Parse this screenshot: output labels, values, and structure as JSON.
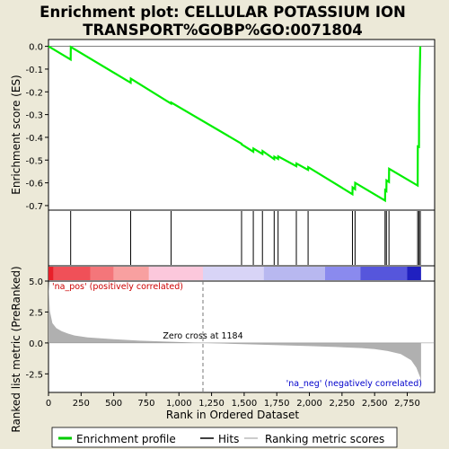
{
  "chart_data": {
    "type": "line",
    "title_line1": "Enrichment plot: CELLULAR POTASSIUM ION",
    "title_line2": "TRANSPORT%GOBP%GO:0071804",
    "xlabel": "Rank in Ordered Dataset",
    "ylabel_top": "Enrichment score (ES)",
    "ylabel_bottom": "Ranked list metric (PreRanked)",
    "xlim": [
      0,
      2960
    ],
    "ylim_es": [
      -0.72,
      0.03
    ],
    "ylim_metric": [
      -4.0,
      5.0
    ],
    "x_ticks": [
      0,
      250,
      500,
      750,
      1000,
      1250,
      1500,
      1750,
      2000,
      2250,
      2500,
      2750
    ],
    "x_tick_labels": [
      "0",
      "250",
      "500",
      "750",
      "1,000",
      "1,250",
      "1,500",
      "1,750",
      "2,000",
      "2,250",
      "2,500",
      "2,750"
    ],
    "es_ticks": [
      0.0,
      -0.1,
      -0.2,
      -0.3,
      -0.4,
      -0.5,
      -0.6,
      -0.7
    ],
    "es_tick_labels": [
      "0.0",
      "-0.1",
      "-0.2",
      "-0.3",
      "-0.4",
      "-0.5",
      "-0.6",
      "-0.7"
    ],
    "metric_ticks": [
      5.0,
      2.5,
      0.0,
      -2.5
    ],
    "metric_tick_labels": [
      "5.0",
      "2.5",
      "0.0",
      "-2.5"
    ],
    "hits": [
      170,
      630,
      940,
      1480,
      1570,
      1640,
      1730,
      1760,
      1900,
      1990,
      2330,
      2350,
      2580,
      2590,
      2610,
      2830,
      2840,
      2850
    ],
    "es_curve": {
      "x": [
        0,
        170,
        171,
        630,
        631,
        940,
        941,
        1480,
        1481,
        1570,
        1571,
        1640,
        1641,
        1730,
        1731,
        1760,
        1761,
        1900,
        1901,
        1990,
        1991,
        2330,
        2331,
        2350,
        2351,
        2580,
        2581,
        2590,
        2591,
        2610,
        2611,
        2830,
        2831,
        2840,
        2841,
        2850
      ],
      "y": [
        0.0,
        -0.058,
        -0.003,
        -0.16,
        -0.142,
        -0.252,
        -0.247,
        -0.428,
        -0.431,
        -0.463,
        -0.449,
        -0.473,
        -0.46,
        -0.496,
        -0.485,
        -0.495,
        -0.484,
        -0.527,
        -0.515,
        -0.543,
        -0.531,
        -0.65,
        -0.62,
        -0.628,
        -0.6,
        -0.678,
        -0.632,
        -0.636,
        -0.589,
        -0.596,
        -0.538,
        -0.612,
        -0.44,
        -0.442,
        -0.258,
        0.0
      ]
    },
    "metric_curve": {
      "x": [
        0,
        10,
        30,
        60,
        100,
        150,
        200,
        300,
        500,
        700,
        1000,
        1184,
        1400,
        1700,
        2000,
        2200,
        2400,
        2500,
        2600,
        2700,
        2780,
        2820,
        2850,
        2856
      ],
      "y": [
        5.0,
        2.6,
        1.6,
        1.2,
        0.95,
        0.75,
        0.6,
        0.45,
        0.3,
        0.18,
        0.07,
        0.0,
        -0.07,
        -0.16,
        -0.25,
        -0.33,
        -0.42,
        -0.5,
        -0.65,
        -0.9,
        -1.4,
        -2.0,
        -2.8,
        -3.5
      ]
    },
    "zero_cross_rank": 1184,
    "zero_cross_label": "Zero cross at 1184",
    "na_pos_label": "'na_pos' (positively correlated)",
    "na_neg_label": "'na_neg' (negatively correlated)",
    "heat_segments": [
      {
        "x0": 0,
        "x1": 40,
        "color": "#e8202a"
      },
      {
        "x0": 40,
        "x1": 320,
        "color": "#f05058"
      },
      {
        "x0": 320,
        "x1": 500,
        "color": "#f4767a"
      },
      {
        "x0": 500,
        "x1": 770,
        "color": "#f8a0a0"
      },
      {
        "x0": 770,
        "x1": 1184,
        "color": "#fcc8dc"
      },
      {
        "x0": 1184,
        "x1": 1650,
        "color": "#d8d4f6"
      },
      {
        "x0": 1650,
        "x1": 2120,
        "color": "#b8b8f0"
      },
      {
        "x0": 2120,
        "x1": 2390,
        "color": "#8a8aee"
      },
      {
        "x0": 2390,
        "x1": 2750,
        "color": "#5656dc"
      },
      {
        "x0": 2750,
        "x1": 2856,
        "color": "#2020c0"
      }
    ],
    "legend": {
      "position": "bottom",
      "items": [
        {
          "label": "Enrichment profile",
          "color": "#00cc00"
        },
        {
          "label": "Hits",
          "color": "#000000"
        },
        {
          "label": "Ranking metric scores",
          "color": "#bbbbbb"
        }
      ]
    },
    "colors": {
      "es_line": "#00ee00",
      "metric_fill": "#b0b0b0",
      "zero_cross_line": "#777777",
      "na_pos_text": "#cc0000",
      "na_neg_text": "#0000cc",
      "background": "#ece9d8",
      "plot_background": "#ffffff"
    },
    "grid": false
  }
}
